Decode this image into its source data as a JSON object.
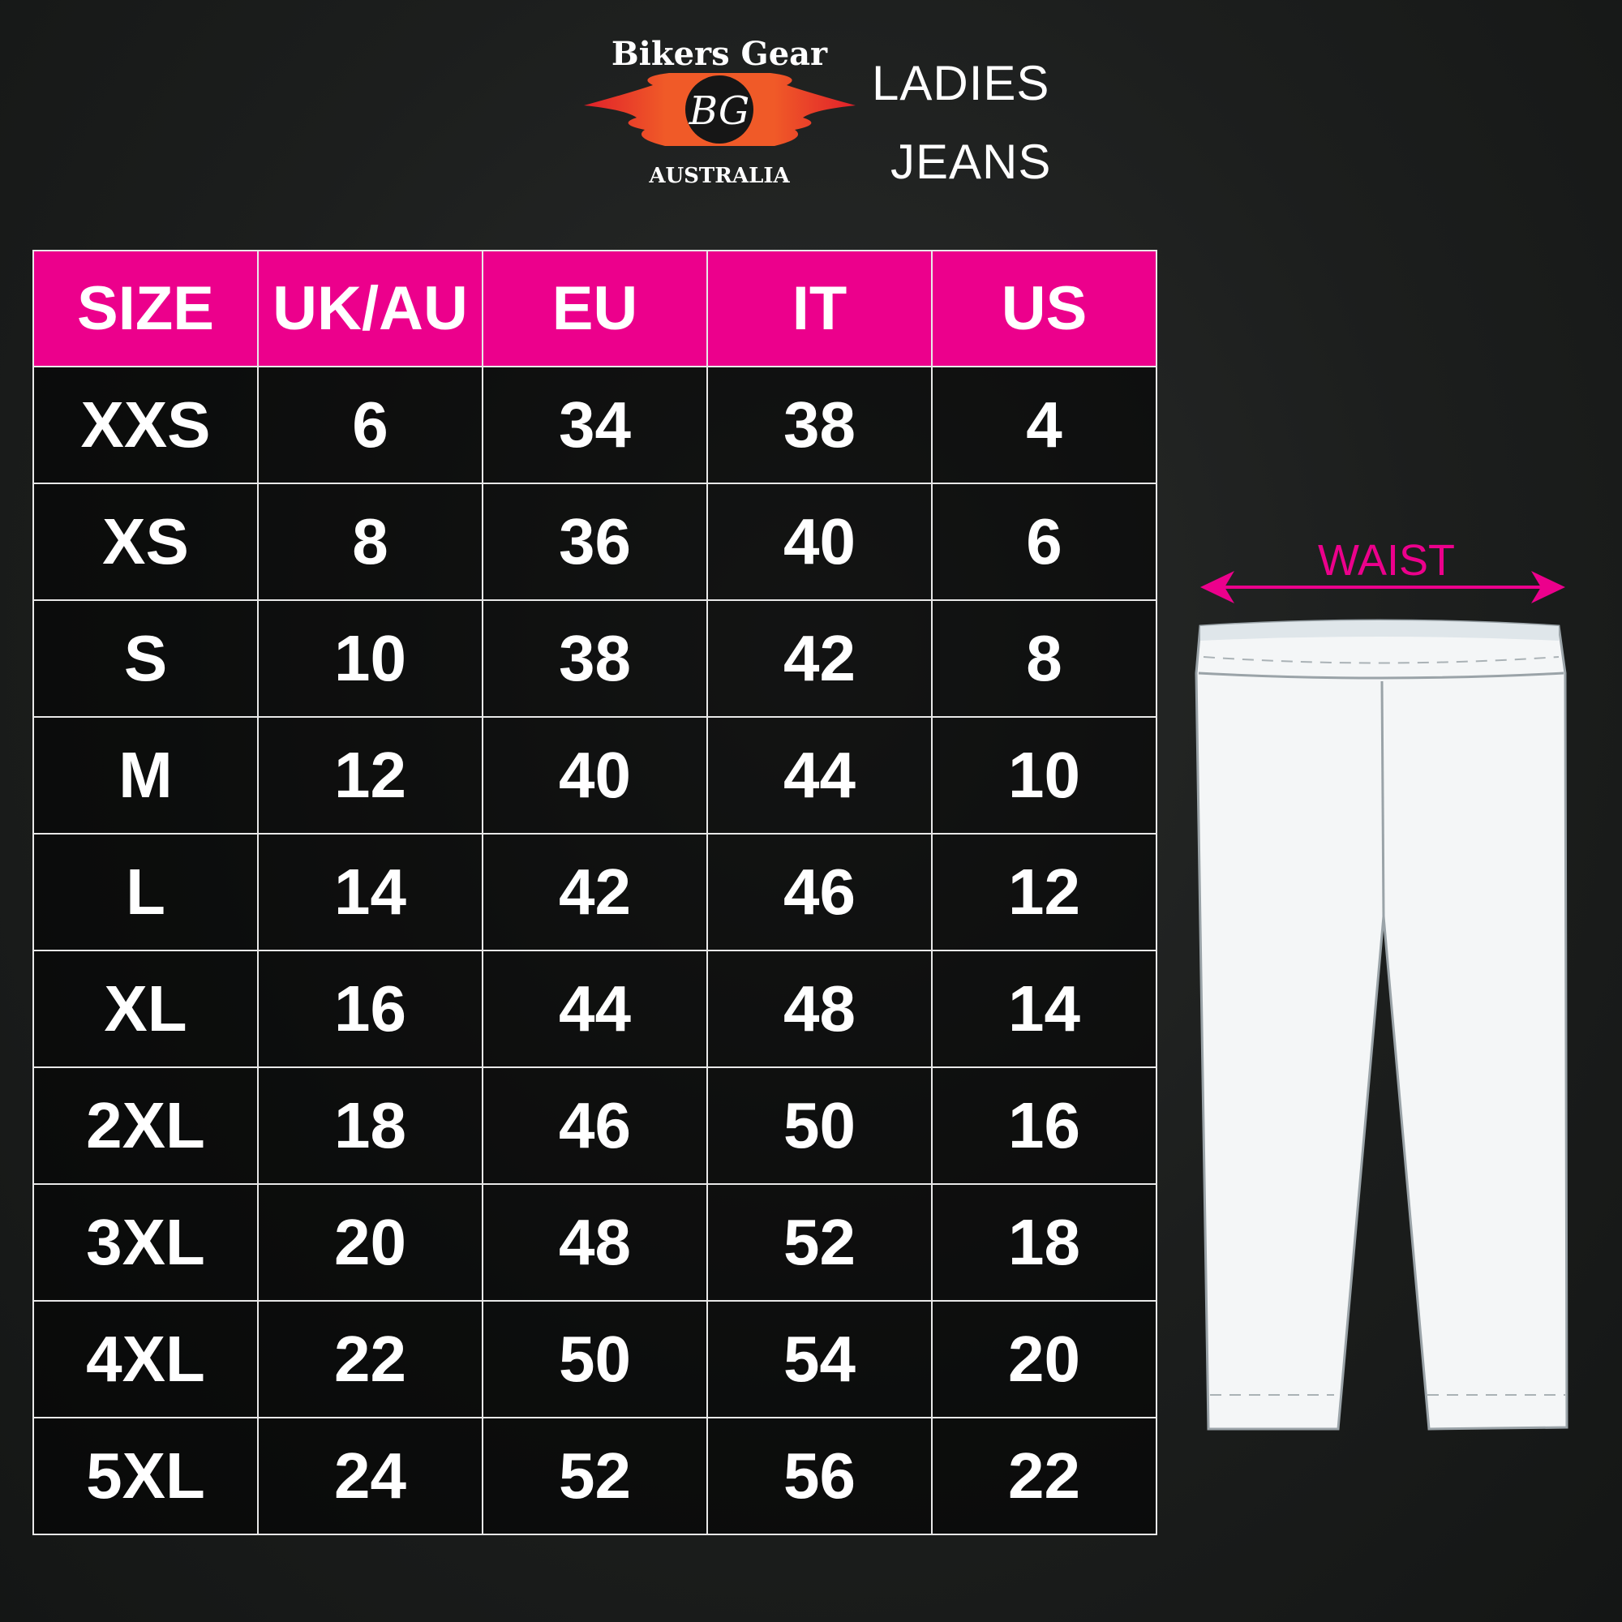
{
  "logo": {
    "top_text": "Bikers Gear",
    "monogram": "BG",
    "bottom_text": "AUSTRALIA"
  },
  "title": {
    "line1": "LADIES",
    "line2": "JEANS"
  },
  "colors": {
    "accent": "#ec008c",
    "flame": "#f05a28"
  },
  "table": {
    "headers": [
      "SIZE",
      "UK/AU",
      "EU",
      "IT",
      "US"
    ],
    "rows": [
      [
        "XXS",
        "6",
        "34",
        "38",
        "4"
      ],
      [
        "XS",
        "8",
        "36",
        "40",
        "6"
      ],
      [
        "S",
        "10",
        "38",
        "42",
        "8"
      ],
      [
        "M",
        "12",
        "40",
        "44",
        "10"
      ],
      [
        "L",
        "14",
        "42",
        "46",
        "12"
      ],
      [
        "XL",
        "16",
        "44",
        "48",
        "14"
      ],
      [
        "2XL",
        "18",
        "46",
        "50",
        "16"
      ],
      [
        "3XL",
        "20",
        "48",
        "52",
        "18"
      ],
      [
        "4XL",
        "22",
        "50",
        "54",
        "20"
      ],
      [
        "5XL",
        "24",
        "52",
        "56",
        "22"
      ]
    ]
  },
  "diagram": {
    "waist_label": "WAIST"
  }
}
